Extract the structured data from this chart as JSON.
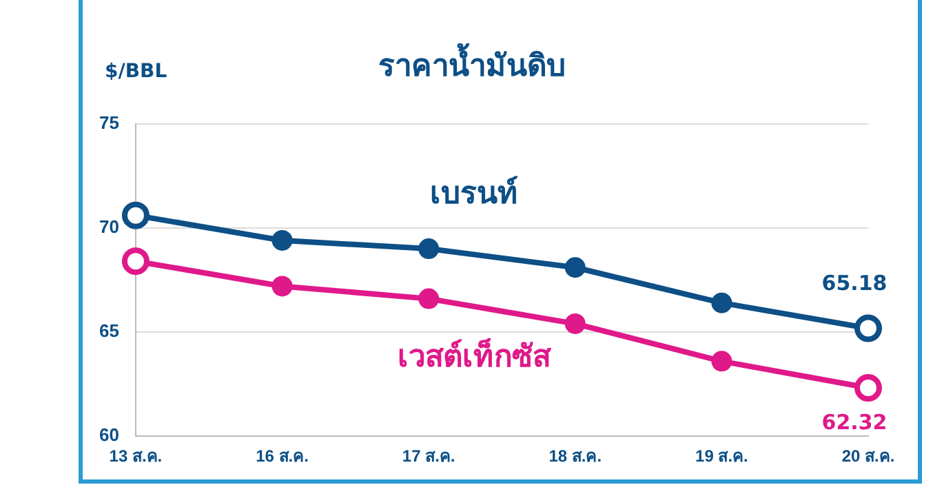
{
  "chart_data": {
    "type": "line",
    "title": "ราคาน้ำมันดิบ",
    "ylabel": "$/BBL",
    "categories": [
      "13 ส.ค.",
      "16 ส.ค.",
      "17 ส.ค.",
      "18 ส.ค.",
      "19 ส.ค.",
      "20 ส.ค."
    ],
    "series": [
      {
        "name": "เบรนท์",
        "color": "#0d4f86",
        "values": [
          70.6,
          69.4,
          69.0,
          68.1,
          66.4,
          65.18
        ],
        "value_labels": [
          null,
          null,
          null,
          null,
          null,
          "65.18"
        ]
      },
      {
        "name": "เวสต์เท็กซัส",
        "color": "#e0198a",
        "values": [
          68.4,
          67.2,
          66.6,
          65.4,
          63.6,
          62.32
        ],
        "value_labels": [
          null,
          null,
          null,
          null,
          null,
          "62.32"
        ]
      }
    ],
    "ylim": [
      60,
      75
    ],
    "yticks": [
      60,
      65,
      70,
      75
    ],
    "grid": "y",
    "legend": false,
    "marker": "circle",
    "line_style": "solid"
  }
}
